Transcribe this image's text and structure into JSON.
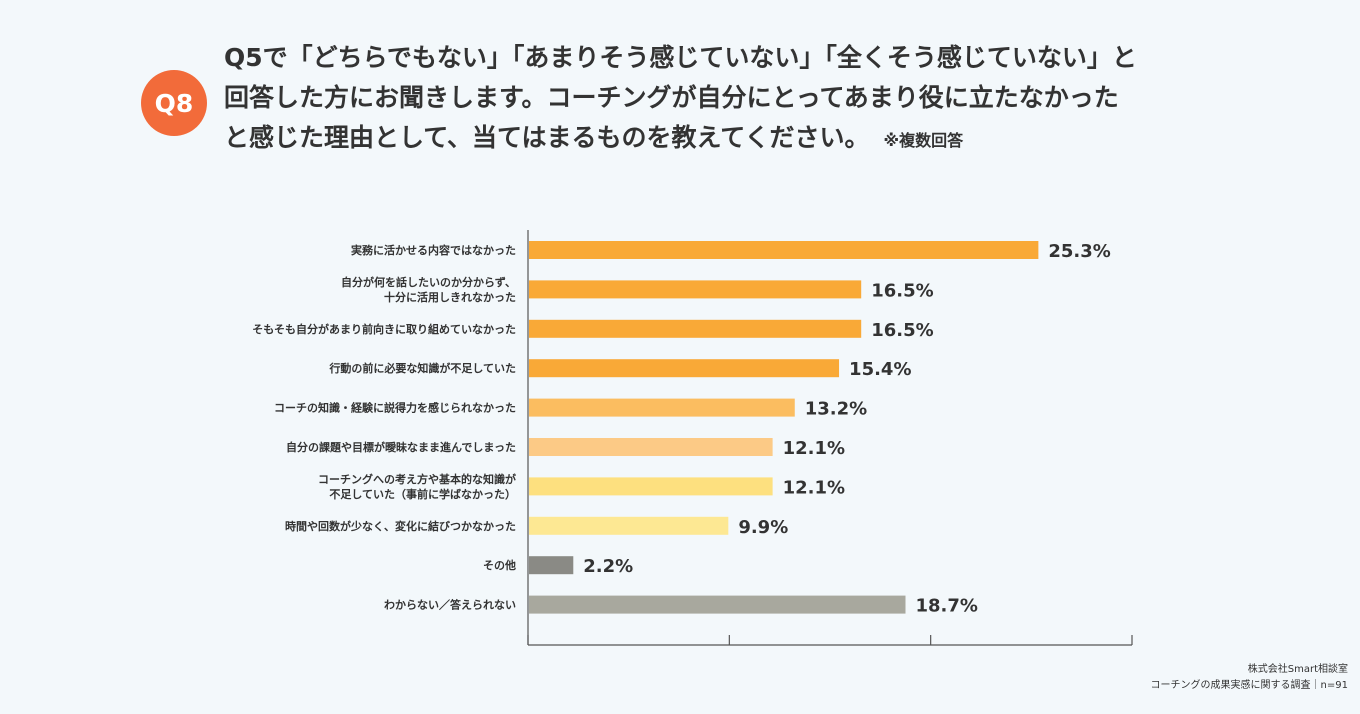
{
  "badge": "Q8",
  "question": {
    "lines": [
      "Q5で「どちらでもない」「あまりそう感じていない」「全くそう感じていない」と",
      "回答した方にお聞きします。コーチングが自分にとってあまり役に立たなかった",
      "と感じた理由として、当てはまるものを教えてください。"
    ],
    "note": "※複数回答"
  },
  "chart_data": {
    "type": "bar",
    "orientation": "horizontal",
    "categories": [
      [
        "実務に活かせる内容ではなかった"
      ],
      [
        "自分が何を話したいのか分からず、",
        "十分に活用しきれなかった"
      ],
      [
        "そもそも自分があまり前向きに取り組めていなかった"
      ],
      [
        "行動の前に必要な知識が不足していた"
      ],
      [
        "コーチの知識・経験に説得力を感じられなかった"
      ],
      [
        "自分の課題や目標が曖昧なまま進んでしまった"
      ],
      [
        "コーチングへの考え方や基本的な知識が",
        "不足していた（事前に学ばなかった）"
      ],
      [
        "時間や回数が少なく、変化に結びつかなかった"
      ],
      [
        "その他"
      ],
      [
        "わからない／答えられない"
      ]
    ],
    "values": [
      25.3,
      16.5,
      16.5,
      15.4,
      13.2,
      12.1,
      12.1,
      9.9,
      2.2,
      18.7
    ],
    "value_labels": [
      "25.3%",
      "16.5%",
      "16.5%",
      "15.4%",
      "13.2%",
      "12.1%",
      "12.1%",
      "9.9%",
      "2.2%",
      "18.7%"
    ],
    "colors": [
      "#f9a937",
      "#f9a937",
      "#f9a937",
      "#f9a937",
      "#fbbd60",
      "#fcca86",
      "#fde07f",
      "#fde893",
      "#8a8a85",
      "#a8a89e"
    ],
    "xlim": [
      0,
      30
    ],
    "ticks": [
      0,
      10,
      20,
      30
    ],
    "grid": false
  },
  "footer": {
    "company": "株式会社Smart相談室",
    "survey": "コーチングの成果実感に関する調査｜n=91"
  }
}
